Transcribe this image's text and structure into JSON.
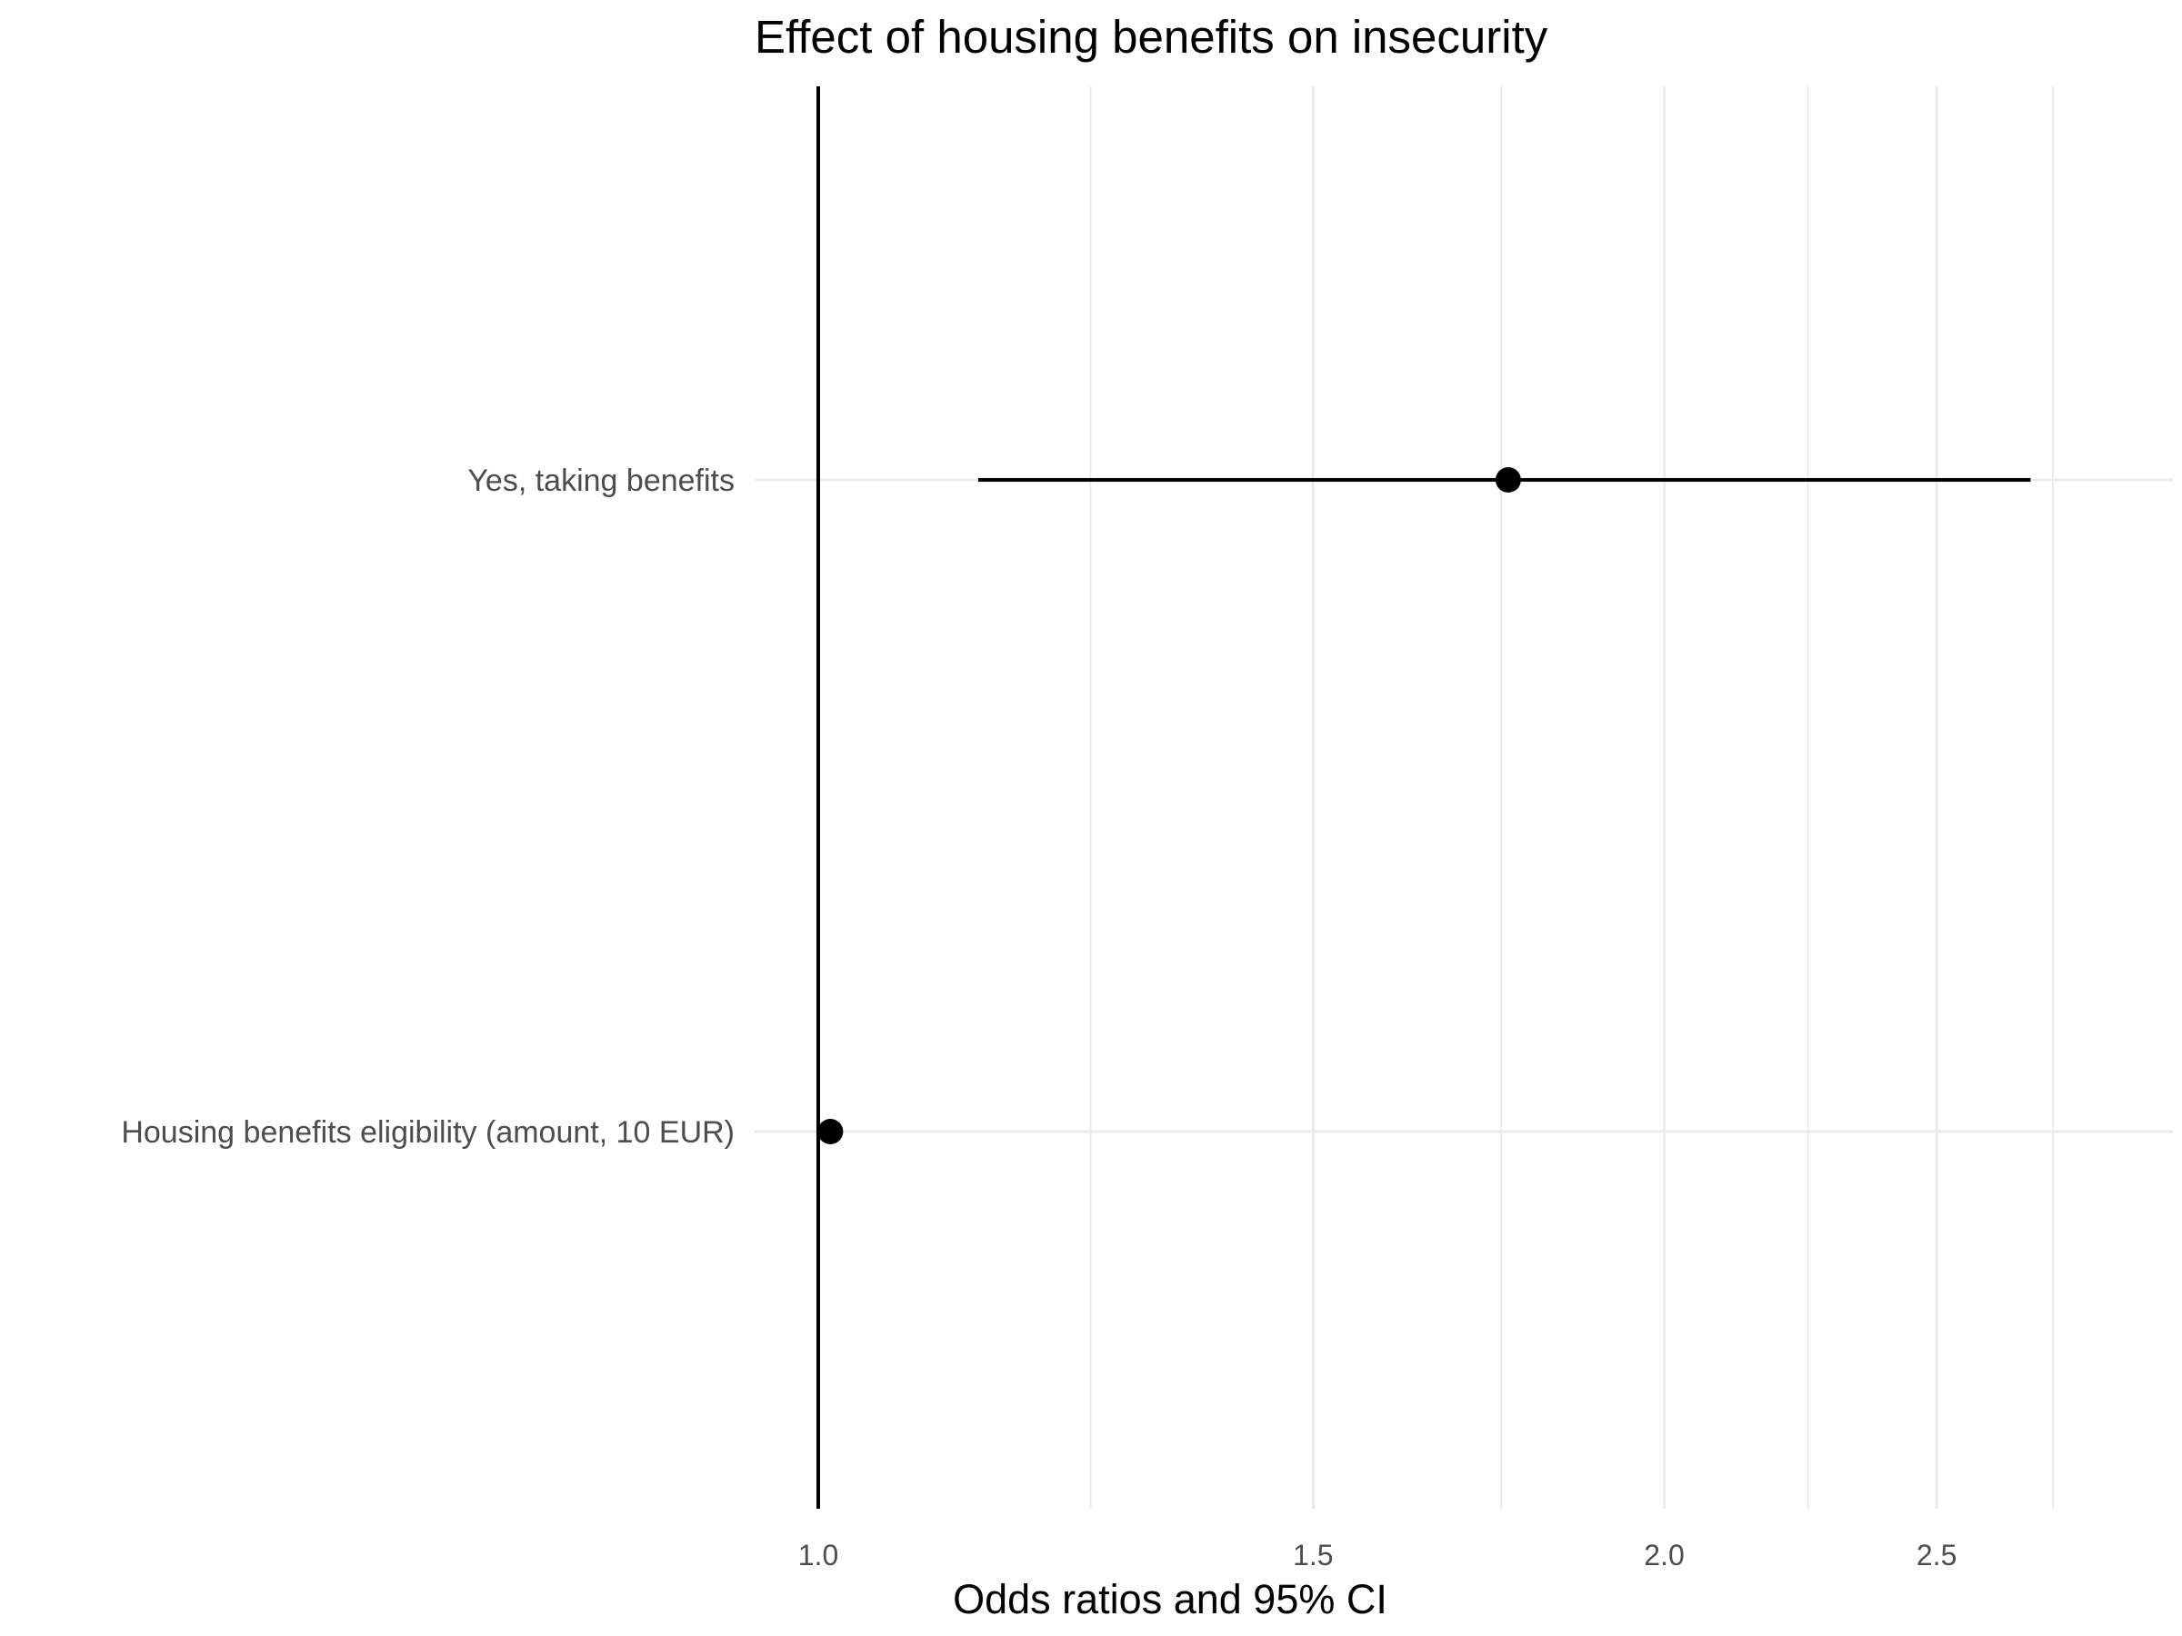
{
  "chart_data": {
    "type": "forest",
    "title": "Effect of housing benefits on insecurity",
    "xlabel": "Odds ratios and 95% CI",
    "ylabel": "",
    "x_scale": "log",
    "xlim": [
      0.97,
      2.8
    ],
    "x_ticks": [
      {
        "value": 1.0,
        "label": "1.0"
      },
      {
        "value": 1.5,
        "label": "1.5"
      },
      {
        "value": 2.0,
        "label": "2.0"
      },
      {
        "value": 2.5,
        "label": "2.5"
      }
    ],
    "x_minor_gridlines": [
      1.25,
      1.75,
      2.25,
      2.75
    ],
    "reference_line": 1.0,
    "grid": true,
    "categories": [
      "Yes, taking benefits",
      "Housing benefits eligibility (amount, 10 EUR)"
    ],
    "estimates": [
      {
        "label": "Yes, taking benefits",
        "or": 1.76,
        "ci_low": 1.14,
        "ci_high": 2.7
      },
      {
        "label": "Housing benefits eligibility (amount, 10 EUR)",
        "or": 1.01,
        "ci_low": 1.0,
        "ci_high": 1.02
      }
    ],
    "colors": {
      "point": "#000000",
      "ci": "#000000",
      "reference_line": "#000000",
      "grid": "#ebebeb"
    }
  }
}
